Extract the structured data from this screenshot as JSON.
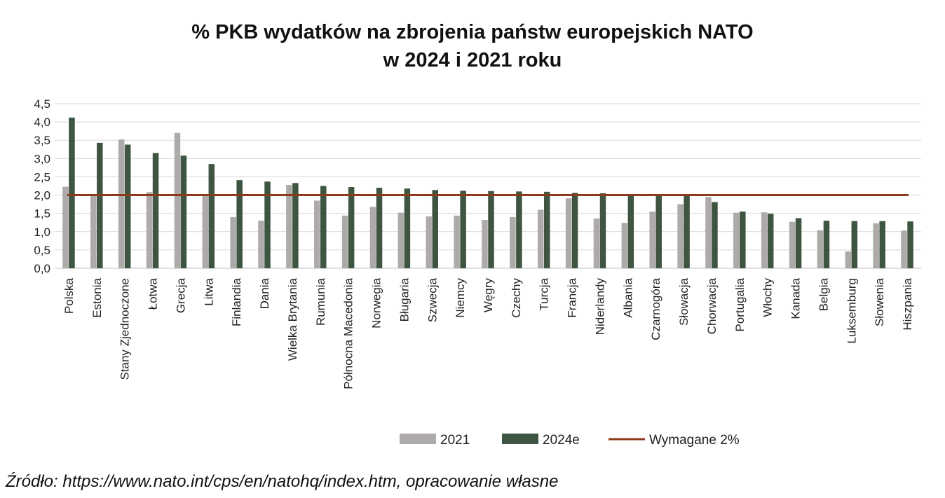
{
  "title_line1": "% PKB wydatków na zbrojenia państw europejskich NATO",
  "title_line2": "w 2024 i 2021 roku",
  "source": "Źródło: https://www.nato.int/cps/en/natohq/index.htm, opracowanie własne",
  "chart_data": {
    "type": "bar",
    "categories": [
      "Polska",
      "Estonia",
      "Stany Zjednoczone",
      "Łotwa",
      "Grecja",
      "Litwa",
      "Finlandia",
      "Dania",
      "Wielka Brytania",
      "Rumunia",
      "Północna Macedonia",
      "Norwegia",
      "Bługaria",
      "Szwecja",
      "Niemcy",
      "Węgry",
      "Czechy",
      "Turcja",
      "Francja",
      "Niderlandy",
      "Albania",
      "Czarnogóra",
      "Słowacja",
      "Chorwacja",
      "Portugalia",
      "Włochy",
      "Kanada",
      "Belgia",
      "Luksemburg",
      "Słowenia",
      "Hiszpania"
    ],
    "series": [
      {
        "name": "2021",
        "color": "#aeaaaa",
        "values": [
          2.23,
          2.0,
          3.52,
          2.08,
          3.7,
          1.98,
          1.4,
          1.3,
          2.28,
          1.85,
          1.44,
          1.68,
          1.52,
          1.42,
          1.44,
          1.32,
          1.4,
          1.6,
          1.91,
          1.36,
          1.24,
          1.55,
          1.75,
          1.95,
          1.52,
          1.53,
          1.27,
          1.04,
          0.46,
          1.23,
          1.03
        ]
      },
      {
        "name": "2024e",
        "color": "#3e5541",
        "values": [
          4.12,
          3.43,
          3.38,
          3.15,
          3.08,
          2.85,
          2.41,
          2.37,
          2.33,
          2.25,
          2.22,
          2.2,
          2.18,
          2.14,
          2.12,
          2.11,
          2.1,
          2.09,
          2.06,
          2.05,
          2.03,
          2.02,
          2.0,
          1.81,
          1.55,
          1.49,
          1.37,
          1.3,
          1.29,
          1.29,
          1.28
        ]
      }
    ],
    "reference_line": {
      "name": "Wymagane 2%",
      "value": 2.0,
      "color": "#8b3a1a"
    },
    "yticks": [
      "0,0",
      "0,5",
      "1,0",
      "1,5",
      "2,0",
      "2,5",
      "3,0",
      "3,5",
      "4,0",
      "4,5"
    ],
    "ylim": [
      0,
      4.5
    ],
    "grid": true,
    "legend_position": "bottom"
  }
}
